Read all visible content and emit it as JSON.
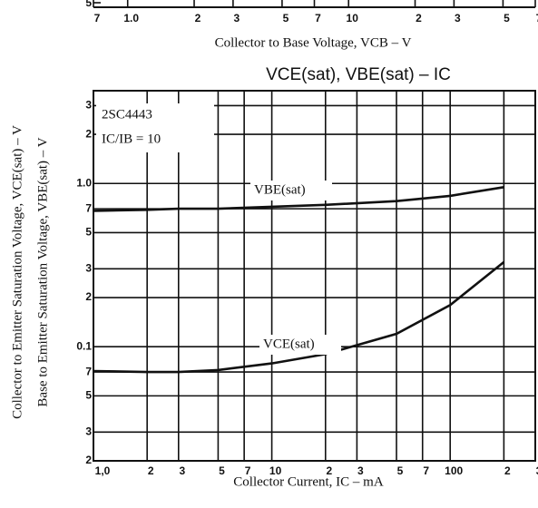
{
  "chart_data": [
    {
      "type": "line",
      "title": "VCE(sat), VBE(sat)  –  IC",
      "xlabel": "Collector Current, IC – mA",
      "ylabel": [
        "Collector to Emitter Saturation Voltage, VCE(sat) – V",
        "Base to Emitter Saturation Voltage, VBE(sat) – V"
      ],
      "annotations": [
        "2SC4443",
        "IC/IB = 10"
      ],
      "xscale": "log",
      "yscale": "log",
      "grid": true,
      "xlim": [
        1,
        300
      ],
      "ylim": [
        0.02,
        3.7
      ],
      "xticks": [
        {
          "value": 1,
          "label": "1,0"
        },
        {
          "value": 2,
          "label": "2"
        },
        {
          "value": 3,
          "label": "3"
        },
        {
          "value": 5,
          "label": "5"
        },
        {
          "value": 7,
          "label": "7"
        },
        10,
        {
          "value": 20,
          "label": "2"
        },
        {
          "value": 30,
          "label": "3"
        },
        {
          "value": 50,
          "label": "5"
        },
        {
          "value": 70,
          "label": "7"
        },
        100,
        {
          "value": 200,
          "label": "2"
        },
        {
          "value": 300,
          "label": "3"
        }
      ],
      "yticks": [
        {
          "value": 0.02,
          "label": "2"
        },
        {
          "value": 0.03,
          "label": "3"
        },
        {
          "value": 0.05,
          "label": "5"
        },
        {
          "value": 0.07,
          "label": "7"
        },
        0.1,
        {
          "value": 0.2,
          "label": "2"
        },
        {
          "value": 0.3,
          "label": "3"
        },
        {
          "value": 0.5,
          "label": "5"
        },
        {
          "value": 0.7,
          "label": "7"
        },
        {
          "value": 1,
          "label": "1.0"
        },
        2,
        3
      ],
      "series": [
        {
          "name": "VBE(sat)",
          "color": "#111",
          "x": [
            1,
            2,
            3,
            5,
            10,
            20,
            50,
            100,
            200
          ],
          "values": [
            0.68,
            0.69,
            0.7,
            0.7,
            0.72,
            0.74,
            0.78,
            0.84,
            0.95
          ]
        },
        {
          "name": "VCE(sat)",
          "color": "#111",
          "x": [
            1,
            2,
            3,
            5,
            10,
            20,
            50,
            100,
            200
          ],
          "values": [
            0.071,
            0.07,
            0.07,
            0.072,
            0.079,
            0.09,
            0.12,
            0.18,
            0.33
          ]
        }
      ]
    },
    {
      "type": "axis",
      "xlabel": "Collector to Base Voltage, VCB – V",
      "xscale": "log",
      "xlim": [
        0.7,
        70
      ],
      "xticks": [
        {
          "value": 0.7,
          "label": "7"
        },
        {
          "value": 1,
          "label": "1.0"
        },
        {
          "value": 2,
          "label": "2"
        },
        {
          "value": 3,
          "label": "3"
        },
        {
          "value": 5,
          "label": "5"
        },
        {
          "value": 7,
          "label": "7"
        },
        10,
        {
          "value": 20,
          "label": "2"
        },
        {
          "value": 30,
          "label": "3"
        },
        {
          "value": 50,
          "label": "5"
        },
        {
          "value": 70,
          "label": "7"
        }
      ],
      "yticks": [
        {
          "value": 5,
          "label": "5"
        }
      ]
    }
  ]
}
